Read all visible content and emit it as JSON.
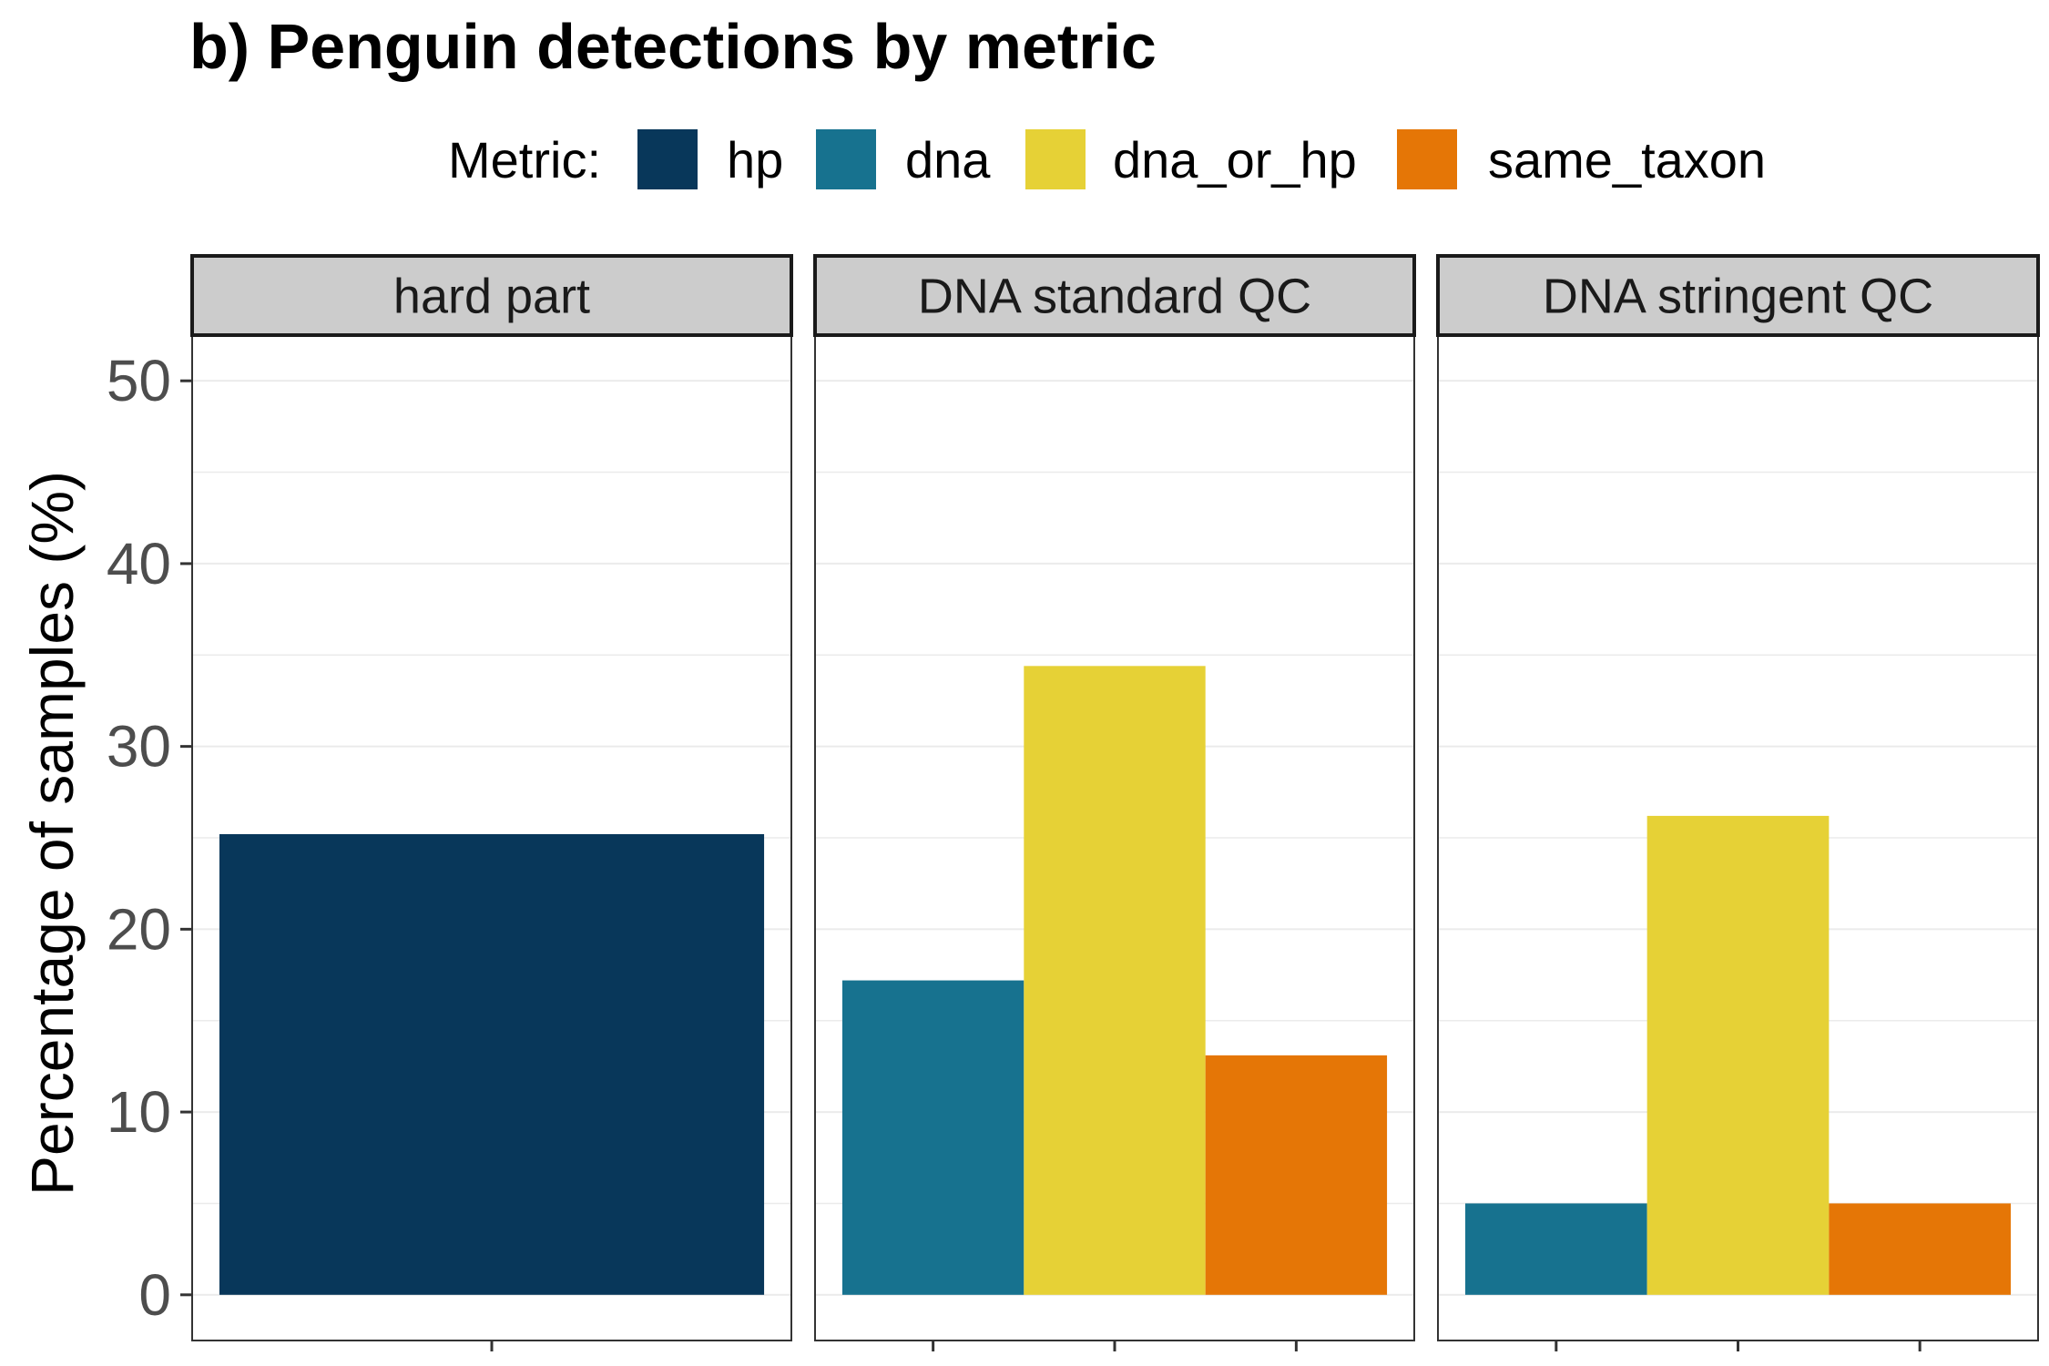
{
  "chart_data": {
    "type": "bar",
    "title": "b) Penguin detections by metric",
    "ylabel": "Percentage of samples (%)",
    "xlabel": "",
    "ylim": [
      -2.5,
      52.5
    ],
    "yticks": [
      0,
      10,
      20,
      30,
      40,
      50
    ],
    "grid": true,
    "legend": {
      "title": "Metric:",
      "placement": "top",
      "entries": [
        {
          "name": "hp",
          "color": "#08375a"
        },
        {
          "name": "dna",
          "color": "#17728f"
        },
        {
          "name": "dna_or_hp",
          "color": "#e6d136"
        },
        {
          "name": "same_taxon",
          "color": "#e57606"
        }
      ]
    },
    "facets": [
      {
        "label": "hard part",
        "bars": [
          {
            "metric": "hp",
            "value": 25.2
          }
        ]
      },
      {
        "label": "DNA standard QC",
        "bars": [
          {
            "metric": "dna",
            "value": 17.2
          },
          {
            "metric": "dna_or_hp",
            "value": 34.4
          },
          {
            "metric": "same_taxon",
            "value": 13.1
          }
        ]
      },
      {
        "label": "DNA stringent QC",
        "bars": [
          {
            "metric": "dna",
            "value": 5.0
          },
          {
            "metric": "dna_or_hp",
            "value": 26.2
          },
          {
            "metric": "same_taxon",
            "value": 5.0
          }
        ]
      }
    ]
  }
}
